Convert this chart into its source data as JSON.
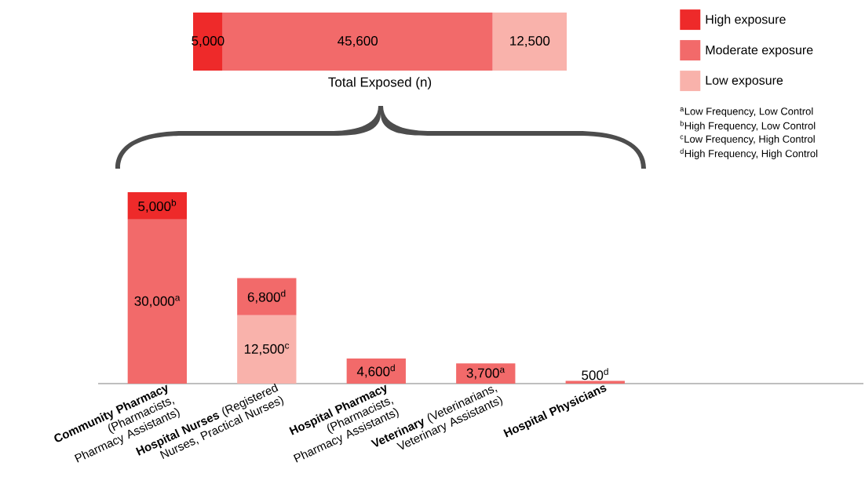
{
  "chart_data": [
    {
      "type": "bar",
      "orientation": "horizontal",
      "stacked": true,
      "xlabel": "Total Exposed (n)",
      "categories": [
        null
      ],
      "tick_labels": false,
      "series": [
        {
          "color": "#ee2a2a",
          "values": [
            5000
          ],
          "value_labels": [
            "5,000"
          ]
        },
        {
          "color": "#f26a6a",
          "values": [
            45600
          ],
          "value_labels": [
            "45,600"
          ]
        },
        {
          "color": "#f9b2ab",
          "values": [
            12500
          ],
          "value_labels": [
            "12,500"
          ]
        }
      ]
    },
    {
      "type": "bar",
      "stacked": true,
      "tick_labels": "x",
      "legend": "top right",
      "categories": [
        "**Community Pharmacy** (Pharmacists, Pharmacy Assistants)",
        "**Hospital Nurses** (Registered Nurses, Practical Nurses)",
        "**Hospital Pharmacy** (Pharmacists, Pharmacy Assistants)",
        "**Veterinary** (Veterinarians, Veterinary Assistants)",
        "**Hospital Physicians**"
      ],
      "series": [
        {
          "name": "Low exposure",
          "color": "#f9b2ab",
          "values": [
            null,
            12500,
            null,
            null,
            null
          ],
          "value_labels": [
            null,
            "12,500$^{c}$",
            null,
            null,
            null
          ]
        },
        {
          "name": "Moderate exposure",
          "color": "#f26a6a",
          "values": [
            30000,
            6800,
            4600,
            3700,
            500
          ],
          "value_labels": [
            "30,000$^{a}$",
            "6,800$^{d}$",
            "4,600$^{d}$",
            "3,700$^{a}$",
            "500$^{d}$"
          ]
        },
        {
          "name": "High exposure",
          "color": "#ee2a2a",
          "values": [
            5000,
            null,
            null,
            null,
            null
          ],
          "value_labels": [
            "5,000$^{b}$",
            null,
            null,
            null,
            null
          ]
        }
      ],
      "annotations": [
        "$^{a}$Low Frequency, Low Control",
        "$^{b}$High Frequency, Low Control",
        "$^{c}$Low Frequency, High Control",
        "$^{d}$High Frequency, High Control"
      ]
    }
  ]
}
